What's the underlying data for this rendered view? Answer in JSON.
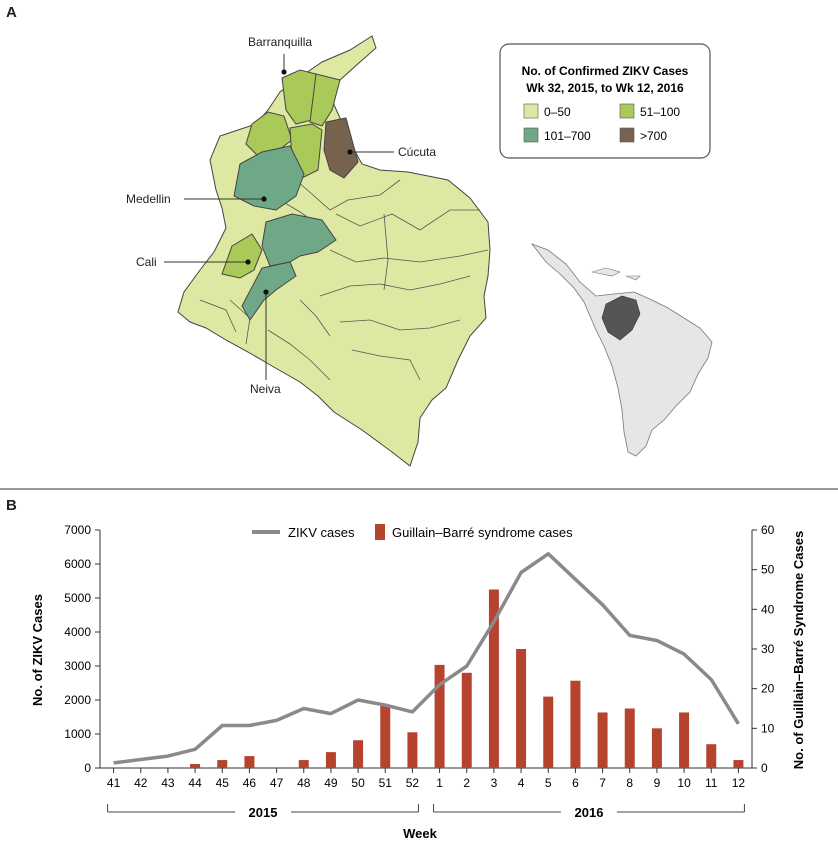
{
  "panelA": {
    "letter": "A",
    "legend": {
      "title_line1": "No. of Confirmed ZIKV Cases",
      "title_line2": "Wk 32, 2015, to Wk 12, 2016",
      "items": [
        {
          "label": "0–50",
          "color": "#dfe8a2"
        },
        {
          "label": "51–100",
          "color": "#a9c958"
        },
        {
          "label": "101–700",
          "color": "#6fa886"
        },
        {
          "label": ">700",
          "color": "#77614f"
        }
      ]
    },
    "cities": {
      "barranquilla": "Barranquilla",
      "cucuta": "Cúcuta",
      "medellin": "Medellin",
      "cali": "Cali",
      "neiva": "Neiva"
    }
  },
  "panelB": {
    "letter": "B",
    "chart_data": {
      "type": "bar",
      "title": "",
      "weeks": [
        "41",
        "42",
        "43",
        "44",
        "45",
        "46",
        "47",
        "48",
        "49",
        "50",
        "51",
        "52",
        "1",
        "2",
        "3",
        "4",
        "5",
        "6",
        "7",
        "8",
        "9",
        "10",
        "11",
        "12"
      ],
      "years": [
        {
          "label": "2015",
          "from": 0,
          "to": 11
        },
        {
          "label": "2016",
          "from": 12,
          "to": 23
        }
      ],
      "xlabel": "Week",
      "ylabel_left": "No. of ZIKV Cases",
      "ylabel_right": "No. of Guillain–Barré Syndrome Cases",
      "ylim_left": [
        0,
        7000
      ],
      "ylim_right": [
        0,
        60
      ],
      "yticks_left": [
        "0",
        "1000",
        "2000",
        "3000",
        "4000",
        "5000",
        "6000",
        "7000"
      ],
      "yticks_right": [
        "0",
        "10",
        "20",
        "30",
        "40",
        "50",
        "60"
      ],
      "legend_placement": "top-center",
      "series": [
        {
          "name": "ZIKV cases",
          "type": "line",
          "axis": "left",
          "color": "#8a8a8a",
          "values": [
            150,
            250,
            350,
            550,
            1250,
            1250,
            1400,
            1750,
            1600,
            2000,
            1850,
            1650,
            2450,
            3000,
            4300,
            5750,
            6300,
            5550,
            4800,
            3900,
            3750,
            3350,
            2600,
            1300
          ]
        },
        {
          "name": "Guillain–Barré syndrome cases",
          "type": "bar",
          "axis": "right",
          "color": "#b5432e",
          "values": [
            0,
            0,
            0,
            1,
            2,
            3,
            0,
            2,
            4,
            7,
            16,
            9,
            26,
            24,
            45,
            30,
            18,
            22,
            14,
            15,
            10,
            14,
            6,
            2
          ]
        }
      ]
    }
  }
}
